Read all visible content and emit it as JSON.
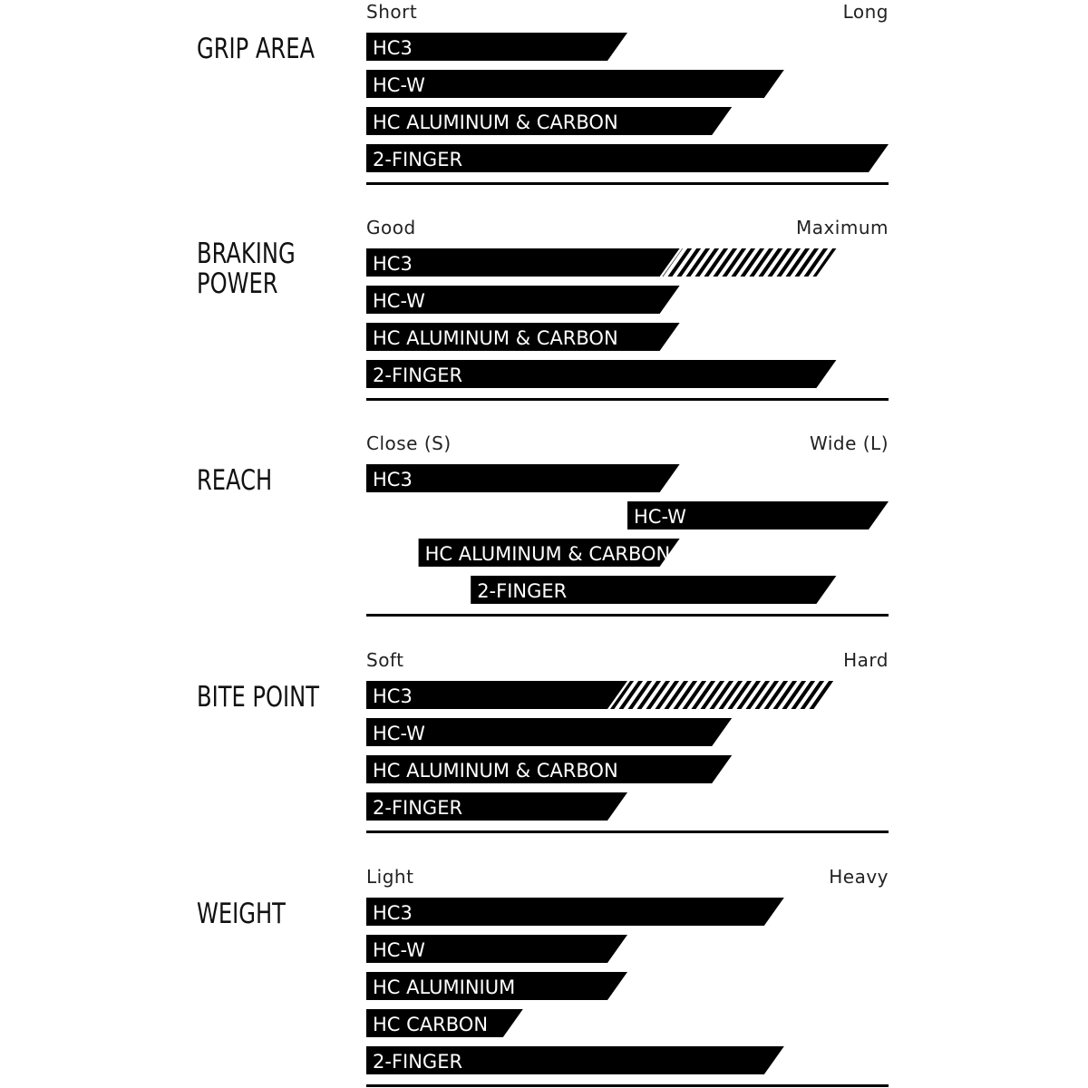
{
  "chart_data": [
    {
      "type": "bar",
      "title": "GRIP AREA",
      "min_label": "Short",
      "max_label": "Long",
      "xlim": [
        0,
        100
      ],
      "bars": [
        {
          "label": "HC3",
          "start": 0,
          "end": 50
        },
        {
          "label": "HC-W",
          "start": 0,
          "end": 80
        },
        {
          "label": "HC ALUMINUM & CARBON",
          "start": 0,
          "end": 70
        },
        {
          "label": "2-FINGER",
          "start": 0,
          "end": 100
        }
      ]
    },
    {
      "type": "bar",
      "title": "BRAKING POWER",
      "min_label": "Good",
      "max_label": "Maximum",
      "xlim": [
        0,
        100
      ],
      "bars": [
        {
          "label": "HC3",
          "start": 0,
          "end": 60,
          "hatched_end": 90
        },
        {
          "label": "HC-W",
          "start": 0,
          "end": 60
        },
        {
          "label": "HC ALUMINUM & CARBON",
          "start": 0,
          "end": 60
        },
        {
          "label": "2-FINGER",
          "start": 0,
          "end": 90
        }
      ]
    },
    {
      "type": "bar",
      "title": "REACH",
      "min_label": "Close (S)",
      "max_label": "Wide (L)",
      "xlim": [
        0,
        100
      ],
      "bars": [
        {
          "label": "HC3",
          "start": 0,
          "end": 60
        },
        {
          "label": "HC-W",
          "start": 50,
          "end": 100
        },
        {
          "label": "HC ALUMINUM & CARBON",
          "start": 10,
          "end": 60
        },
        {
          "label": "2-FINGER",
          "start": 20,
          "end": 90
        }
      ]
    },
    {
      "type": "bar",
      "title": "BITE POINT",
      "min_label": "Soft",
      "max_label": "Hard",
      "xlim": [
        0,
        100
      ],
      "bars": [
        {
          "label": "HC3",
          "start": 0,
          "end": 50,
          "hatched_end": 90
        },
        {
          "label": "HC-W",
          "start": 0,
          "end": 70
        },
        {
          "label": "HC ALUMINUM & CARBON",
          "start": 0,
          "end": 70
        },
        {
          "label": "2-FINGER",
          "start": 0,
          "end": 50
        }
      ]
    },
    {
      "type": "bar",
      "title": "WEIGHT",
      "min_label": "Light",
      "max_label": "Heavy",
      "xlim": [
        0,
        100
      ],
      "bars": [
        {
          "label": "HC3",
          "start": 0,
          "end": 80
        },
        {
          "label": "HC-W",
          "start": 0,
          "end": 50
        },
        {
          "label": "HC ALUMINIUM",
          "start": 0,
          "end": 50
        },
        {
          "label": "HC CARBON",
          "start": 0,
          "end": 30
        },
        {
          "label": "2-FINGER",
          "start": 0,
          "end": 80
        }
      ]
    }
  ],
  "colors": {
    "bar": "#000000",
    "background": "#ffffff"
  }
}
